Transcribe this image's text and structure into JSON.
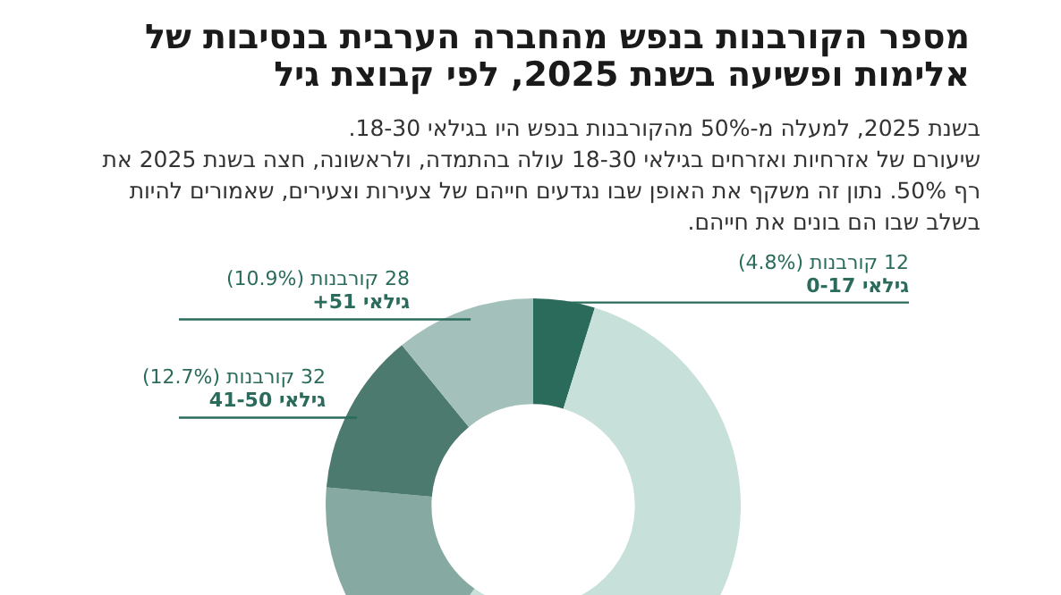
{
  "chart_data": {
    "type": "donut",
    "title": "מספר הקורבנות בנפש מהחברה הערבית בנסיבות של אלימות ופשיעה בשנת 2025, לפי קבוצת גיל",
    "annotations": [
      "בשנת 2025, למעלה מ-50% מהקורבנות בנפש היו בגילאי 18-30.",
      "שיעורם של אזרחיות ואזרחים בגילאי 18-30 עולה בהתמדה, ולראשונה, חצה בשנת 2025 את רף 50%. נתון זה משקף את האופן שבו נגדעים חייהם של צעירות וצעירים, שאמורים להיות בשלב שבו הם בונים את חייהם."
    ],
    "categories": [
      "גילאי 0-17",
      null,
      null,
      "גילאי 41-50",
      "גילאי 51+"
    ],
    "values": [
      4.8,
      55,
      16.6,
      12.7,
      10.9
    ],
    "value_labels": [
      "12 קורבנות (4.8%)",
      null,
      null,
      "32 קורבנות (12.7%)",
      "28 קורבנות (10.9%)"
    ],
    "colors": [
      "#2a6b5c",
      "#c8e0da",
      "#86aaa1",
      "#4d7a6e",
      "#a3c0bb"
    ],
    "legend": false
  }
}
